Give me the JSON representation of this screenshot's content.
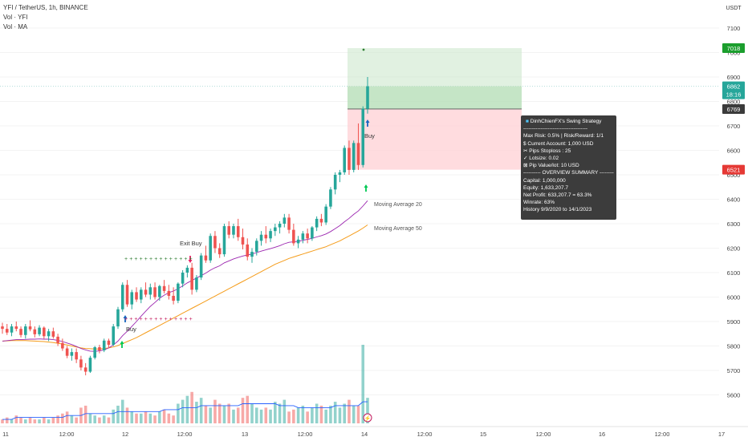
{
  "legend": {
    "symbol_line": "YFI / TetherUS, 1h, BINANCE",
    "vol_line": "Vol · YFI",
    "ma_line": "Vol · MA"
  },
  "price_axis": {
    "unit": "USDT",
    "ticks": [
      "7100",
      "7000",
      "6900",
      "6800",
      "6700",
      "6600",
      "6500",
      "6400",
      "6300",
      "6200",
      "6100",
      "6000",
      "5900",
      "5800",
      "5700",
      "5600"
    ],
    "tags": {
      "target": "7018",
      "current": "6862",
      "countdown": "18:16",
      "entry": "6769",
      "stop": "6521"
    }
  },
  "time_axis": {
    "labels": [
      "11",
      "12:00",
      "12",
      "12:00",
      "13",
      "12:00",
      "14",
      "12:00",
      "15",
      "12:00",
      "16",
      "12:00",
      "17"
    ]
  },
  "annotations": {
    "buy_1": "Buy",
    "buy_2": "Buy",
    "exit_buy": "Exit Buy",
    "ma20": "Moving Average 20",
    "ma50": "Moving Average 50"
  },
  "strategy_box": {
    "title": "DinhChienFX's Swing Strategy",
    "sep1": "-------------------------------------",
    "risk": "Max Risk: 0.5% | Risk/Reward: 1/1",
    "account": "$ Current Account: 1,000 USD",
    "pips": "✂ Pips Stoploss : 25",
    "lot": "✓ Lotsize: 0.02",
    "pip_value": "⊠ Pip Value/lot: 10 USD",
    "overview": "---------- OVERVIEW SUMMARY ---------",
    "capital": "Capital: 1,000,000",
    "equity": "Equity: 1,633,207.7",
    "net_profit": "Net Profit: 633,207.7 = 63.3%",
    "winrate": "Winrate: 63%",
    "history": "History 9/9/2020 to 14/1/2023"
  },
  "colors": {
    "up": "#26a69a",
    "down": "#ef5350",
    "ma20": "#9c27b0",
    "ma50": "#f59c1a",
    "vol_ma": "#2962ff",
    "target_zone": "#c8e6c9",
    "stop_zone": "#ffcdd2",
    "buy_arrow": "#00c853",
    "exit_arrow": "#e91e63"
  },
  "chart_data": {
    "type": "candlestick",
    "symbol": "YFI / TetherUS",
    "interval": "1h",
    "exchange": "BINANCE",
    "ylim": [
      5530,
      7180
    ],
    "candles": [
      [
        5880,
        5895,
        5850,
        5870
      ],
      [
        5870,
        5890,
        5845,
        5855
      ],
      [
        5855,
        5890,
        5840,
        5880
      ],
      [
        5880,
        5900,
        5860,
        5870
      ],
      [
        5870,
        5880,
        5835,
        5845
      ],
      [
        5845,
        5890,
        5830,
        5880
      ],
      [
        5880,
        5905,
        5860,
        5868
      ],
      [
        5868,
        5880,
        5835,
        5848
      ],
      [
        5848,
        5885,
        5840,
        5875
      ],
      [
        5875,
        5880,
        5830,
        5840
      ],
      [
        5840,
        5870,
        5820,
        5860
      ],
      [
        5860,
        5875,
        5830,
        5838
      ],
      [
        5838,
        5850,
        5800,
        5812
      ],
      [
        5812,
        5830,
        5780,
        5790
      ],
      [
        5790,
        5800,
        5750,
        5760
      ],
      [
        5760,
        5790,
        5740,
        5775
      ],
      [
        5775,
        5790,
        5730,
        5745
      ],
      [
        5745,
        5760,
        5700,
        5712
      ],
      [
        5712,
        5730,
        5680,
        5695
      ],
      [
        5695,
        5760,
        5690,
        5752
      ],
      [
        5752,
        5800,
        5745,
        5795
      ],
      [
        5795,
        5805,
        5770,
        5782
      ],
      [
        5782,
        5830,
        5775,
        5822
      ],
      [
        5822,
        5830,
        5790,
        5805
      ],
      [
        5805,
        5890,
        5800,
        5880
      ],
      [
        5880,
        5960,
        5870,
        5950
      ],
      [
        5950,
        6060,
        5940,
        6050
      ],
      [
        6050,
        6070,
        5960,
        5970
      ],
      [
        5970,
        6030,
        5950,
        6020
      ],
      [
        6020,
        6040,
        5980,
        5990
      ],
      [
        5990,
        6040,
        5975,
        6030
      ],
      [
        6030,
        6060,
        6000,
        6010
      ],
      [
        6010,
        6055,
        5990,
        6040
      ],
      [
        6040,
        6060,
        5990,
        6000
      ],
      [
        6000,
        6050,
        5985,
        6045
      ],
      [
        6045,
        6070,
        6015,
        6025
      ],
      [
        6025,
        6050,
        5990,
        6005
      ],
      [
        6005,
        6040,
        5970,
        5985
      ],
      [
        5985,
        6060,
        5975,
        6055
      ],
      [
        6055,
        6110,
        6040,
        6100
      ],
      [
        6100,
        6130,
        6080,
        6120
      ],
      [
        6120,
        6140,
        6010,
        6030
      ],
      [
        6030,
        6090,
        6020,
        6080
      ],
      [
        6080,
        6180,
        6070,
        6170
      ],
      [
        6170,
        6210,
        6140,
        6150
      ],
      [
        6150,
        6260,
        6140,
        6250
      ],
      [
        6250,
        6270,
        6180,
        6200
      ],
      [
        6200,
        6220,
        6160,
        6175
      ],
      [
        6175,
        6300,
        6165,
        6290
      ],
      [
        6290,
        6310,
        6240,
        6255
      ],
      [
        6255,
        6300,
        6240,
        6290
      ],
      [
        6290,
        6320,
        6230,
        6245
      ],
      [
        6245,
        6280,
        6195,
        6215
      ],
      [
        6215,
        6240,
        6150,
        6165
      ],
      [
        6165,
        6200,
        6140,
        6185
      ],
      [
        6185,
        6240,
        6170,
        6230
      ],
      [
        6230,
        6270,
        6210,
        6255
      ],
      [
        6255,
        6290,
        6220,
        6240
      ],
      [
        6240,
        6280,
        6225,
        6270
      ],
      [
        6270,
        6300,
        6250,
        6285
      ],
      [
        6285,
        6310,
        6260,
        6300
      ],
      [
        6300,
        6340,
        6285,
        6325
      ],
      [
        6325,
        6340,
        6260,
        6275
      ],
      [
        6275,
        6300,
        6210,
        6220
      ],
      [
        6220,
        6250,
        6200,
        6235
      ],
      [
        6235,
        6270,
        6220,
        6260
      ],
      [
        6260,
        6280,
        6220,
        6240
      ],
      [
        6240,
        6290,
        6230,
        6285
      ],
      [
        6285,
        6330,
        6270,
        6320
      ],
      [
        6320,
        6340,
        6290,
        6305
      ],
      [
        6305,
        6380,
        6295,
        6370
      ],
      [
        6370,
        6450,
        6360,
        6440
      ],
      [
        6440,
        6510,
        6420,
        6500
      ],
      [
        6500,
        6520,
        6470,
        6510
      ],
      [
        6510,
        6620,
        6500,
        6610
      ],
      [
        6610,
        6640,
        6500,
        6520
      ],
      [
        6520,
        6640,
        6510,
        6630
      ],
      [
        6630,
        6710,
        6520,
        6540
      ],
      [
        6540,
        6780,
        6530,
        6770
      ],
      [
        6770,
        6900,
        6750,
        6862
      ]
    ],
    "volume": [
      2,
      3,
      2,
      4,
      3,
      2,
      3,
      2,
      2,
      3,
      2,
      3,
      4,
      5,
      6,
      4,
      3,
      8,
      9,
      5,
      4,
      3,
      4,
      3,
      7,
      9,
      12,
      8,
      6,
      5,
      5,
      6,
      5,
      4,
      6,
      7,
      5,
      4,
      10,
      12,
      14,
      16,
      11,
      13,
      9,
      8,
      12,
      10,
      9,
      10,
      7,
      8,
      13,
      14,
      10,
      8,
      7,
      8,
      7,
      11,
      10,
      12,
      6,
      7,
      8,
      9,
      6,
      8,
      10,
      9,
      7,
      9,
      11,
      8,
      10,
      12,
      9,
      9,
      40,
      13
    ],
    "ma20": [
      5820,
      5822,
      5824,
      5826,
      5826,
      5827,
      5828,
      5828,
      5829,
      5828,
      5828,
      5826,
      5823,
      5818,
      5812,
      5806,
      5798,
      5790,
      5784,
      5779,
      5778,
      5780,
      5784,
      5792,
      5804,
      5820,
      5842,
      5860,
      5880,
      5900,
      5922,
      5942,
      5962,
      5978,
      5995,
      6008,
      6018,
      6025,
      6034,
      6046,
      6058,
      6068,
      6078,
      6088,
      6098,
      6110,
      6120,
      6128,
      6140,
      6148,
      6156,
      6162,
      6168,
      6172,
      6176,
      6182,
      6188,
      6193,
      6198,
      6204,
      6210,
      6218,
      6224,
      6226,
      6228,
      6232,
      6236,
      6240,
      6246,
      6251,
      6258,
      6268,
      6280,
      6292,
      6308,
      6322,
      6338,
      6352,
      6372,
      6394
    ],
    "ma50": [
      5820,
      5821,
      5822,
      5822,
      5822,
      5822,
      5821,
      5820,
      5819,
      5818,
      5816,
      5814,
      5811,
      5808,
      5804,
      5800,
      5796,
      5792,
      5790,
      5789,
      5788,
      5788,
      5790,
      5792,
      5796,
      5802,
      5810,
      5818,
      5826,
      5834,
      5844,
      5854,
      5864,
      5874,
      5884,
      5894,
      5904,
      5914,
      5924,
      5934,
      5944,
      5954,
      5964,
      5974,
      5984,
      5994,
      6004,
      6014,
      6024,
      6034,
      6044,
      6054,
      6064,
      6074,
      6084,
      6094,
      6104,
      6114,
      6124,
      6134,
      6142,
      6150,
      6158,
      6164,
      6170,
      6176,
      6182,
      6188,
      6194,
      6200,
      6206,
      6214,
      6222,
      6230,
      6240,
      6250,
      6260,
      6270,
      6282,
      6295
    ],
    "vol_ma": [
      2,
      2,
      2,
      3,
      3,
      3,
      3,
      3,
      3,
      3,
      3,
      3,
      3,
      3,
      4,
      4,
      4,
      4,
      5,
      5,
      5,
      5,
      5,
      5,
      5,
      6,
      6,
      6,
      6,
      6,
      6,
      6,
      6,
      6,
      6,
      7,
      7,
      7,
      7,
      8,
      8,
      8,
      8,
      9,
      9,
      9,
      9,
      9,
      9,
      9,
      9,
      9,
      10,
      10,
      10,
      10,
      10,
      10,
      10,
      10,
      9,
      9,
      9,
      9,
      8,
      8,
      8,
      8,
      8,
      8,
      8,
      8,
      9,
      9,
      9,
      9,
      9,
      9,
      11,
      11
    ],
    "position": {
      "target": 7018,
      "entry": 6769,
      "stop": 6521
    },
    "ma20_label": "Moving Average 20",
    "ma50_label": "Moving Average 50"
  }
}
